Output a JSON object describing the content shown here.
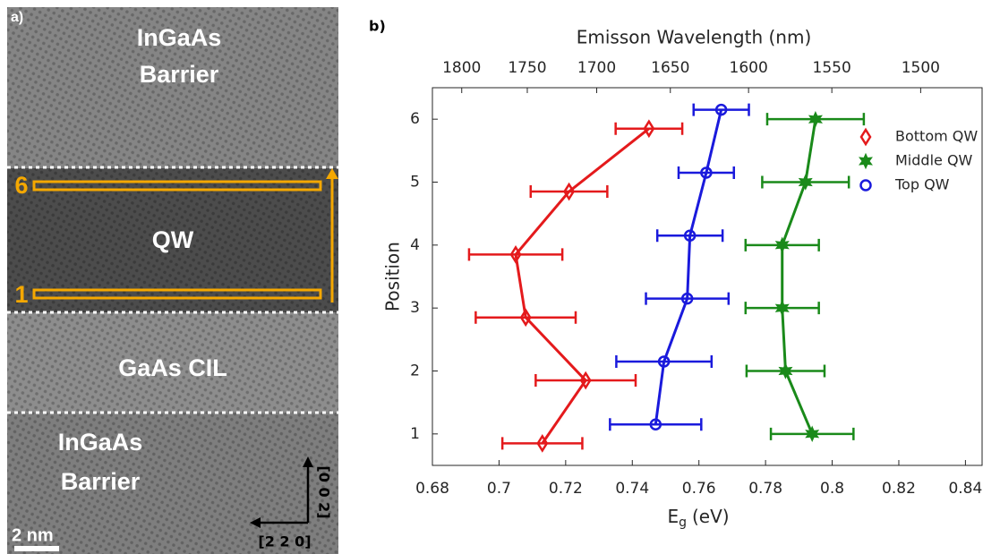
{
  "panel_a": {
    "label": "a)",
    "top_region": [
      "InGaAs",
      "Barrier"
    ],
    "qw_region": "QW",
    "cil_region": "GaAs CIL",
    "bottom_region": [
      "InGaAs",
      "Barrier"
    ],
    "start_marker": "1",
    "end_marker": "6",
    "scale_bar": "2 nm",
    "vertical_direction": "[0 0 2]",
    "horizontal_direction": "[2 2 0]"
  },
  "chart_data": {
    "type": "errorbar",
    "panel_label": "b)",
    "xlabel": {
      "main": "E",
      "sub": "g",
      "unit": "(eV)"
    },
    "ylabel": "Position",
    "x2label": "Emisson Wavelength (nm)",
    "xlim": [
      0.68,
      0.845
    ],
    "xticks": [
      0.68,
      0.7,
      0.72,
      0.74,
      0.76,
      0.78,
      0.8,
      0.82,
      0.84
    ],
    "ylim": [
      0.5,
      6.5
    ],
    "yticks": [
      1,
      2,
      3,
      4,
      5,
      6
    ],
    "x2ticks": [
      1800,
      1750,
      1700,
      1650,
      1600,
      1550,
      1500
    ],
    "legend": "upper right",
    "series": [
      {
        "name": "Bottom QW",
        "color": "#e41a1c",
        "marker": "diamond",
        "x": [
          0.713,
          0.726,
          0.708,
          0.705,
          0.721,
          0.745
        ],
        "values": [
          0.85,
          1.85,
          2.85,
          3.85,
          4.85,
          5.85
        ],
        "xerr": [
          0.012,
          0.015,
          0.015,
          0.014,
          0.0115,
          0.01
        ]
      },
      {
        "name": "Middle QW",
        "color": "#1a8a1a",
        "marker": "star",
        "x": [
          0.794,
          0.786,
          0.785,
          0.785,
          0.792,
          0.795
        ],
        "values": [
          1,
          2,
          3,
          4,
          5,
          6
        ],
        "xerr": [
          0.0124,
          0.0117,
          0.011,
          0.011,
          0.013,
          0.0145
        ]
      },
      {
        "name": "Top QW",
        "color": "#1a1adc",
        "marker": "circle",
        "x": [
          0.747,
          0.7495,
          0.7565,
          0.7573,
          0.7622,
          0.7667
        ],
        "values": [
          1.15,
          2.15,
          3.15,
          4.15,
          5.15,
          6.15
        ],
        "xerr": [
          0.0137,
          0.0143,
          0.0124,
          0.0098,
          0.0083,
          0.0083
        ]
      }
    ]
  }
}
